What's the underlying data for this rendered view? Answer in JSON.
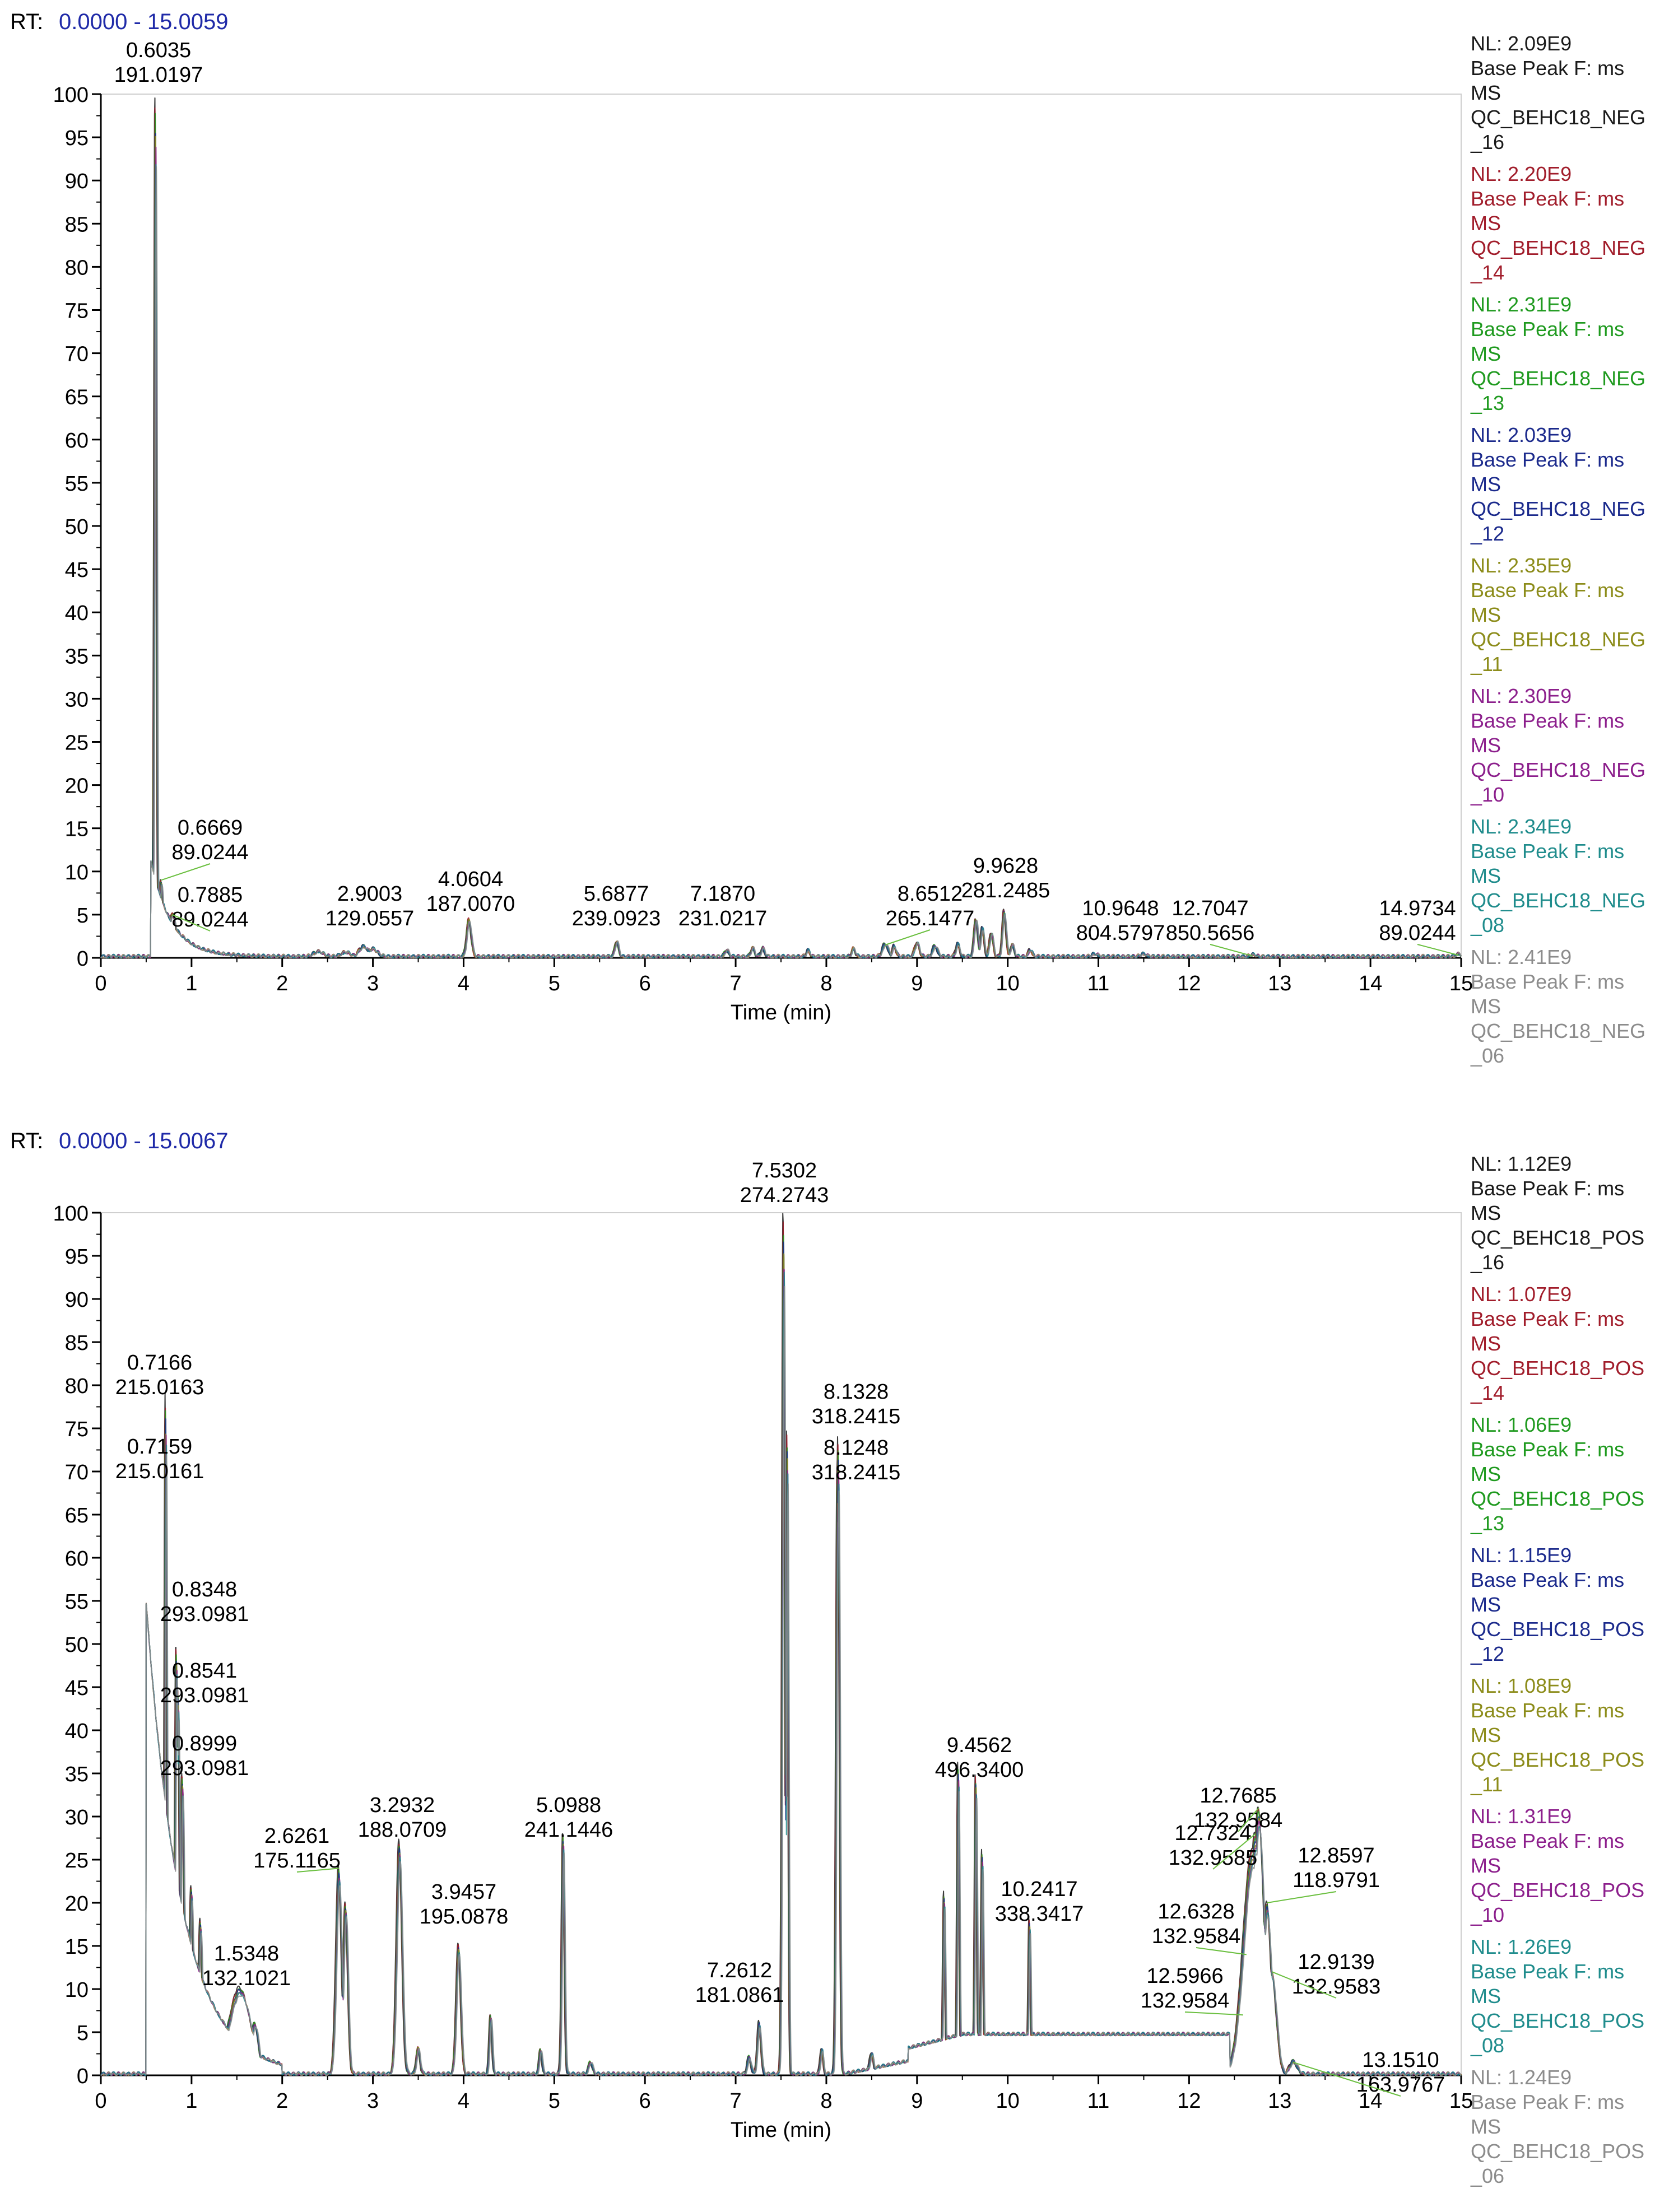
{
  "chart_data": [
    {
      "type": "line",
      "id": "neg",
      "rt_label": "RT:",
      "rt_range": "0.0000 - 15.0059",
      "xlabel": "Time (min)",
      "ylabel": "",
      "xlim": [
        0,
        15
      ],
      "ylim": [
        0,
        100
      ],
      "x_ticks": [
        "0",
        "1",
        "2",
        "3",
        "4",
        "5",
        "6",
        "7",
        "8",
        "9",
        "10",
        "11",
        "12",
        "13",
        "14",
        "15"
      ],
      "y_ticks": [
        "0",
        "5",
        "10",
        "15",
        "20",
        "25",
        "30",
        "35",
        "40",
        "45",
        "50",
        "55",
        "60",
        "65",
        "70",
        "75",
        "80",
        "85",
        "90",
        "95",
        "100"
      ],
      "legend": [
        {
          "nl": "NL: 2.09E9",
          "l2": "Base Peak F: ms",
          "l3": "MS",
          "l4": "QC_BEHC18_NEG",
          "l5": "_16",
          "color": "#1a1a1a"
        },
        {
          "nl": "NL: 2.20E9",
          "l2": "Base Peak F: ms",
          "l3": "MS",
          "l4": "QC_BEHC18_NEG",
          "l5": "_14",
          "color": "#a11d2b"
        },
        {
          "nl": "NL: 2.31E9",
          "l2": "Base Peak F: ms",
          "l3": "MS",
          "l4": "QC_BEHC18_NEG",
          "l5": "_13",
          "color": "#1f9a1f"
        },
        {
          "nl": "NL: 2.03E9",
          "l2": "Base Peak F: ms",
          "l3": "MS",
          "l4": "QC_BEHC18_NEG",
          "l5": "_12",
          "color": "#1b2a8c"
        },
        {
          "nl": "NL: 2.35E9",
          "l2": "Base Peak F: ms",
          "l3": "MS",
          "l4": "QC_BEHC18_NEG",
          "l5": "_11",
          "color": "#8c8c1a"
        },
        {
          "nl": "NL: 2.30E9",
          "l2": "Base Peak F: ms",
          "l3": "MS",
          "l4": "QC_BEHC18_NEG",
          "l5": "_10",
          "color": "#8c1f8c"
        },
        {
          "nl": "NL: 2.34E9",
          "l2": "Base Peak F: ms",
          "l3": "MS",
          "l4": "QC_BEHC18_NEG",
          "l5": "_08",
          "color": "#1f8c8c"
        },
        {
          "nl": "NL: 2.41E9",
          "l2": "Base Peak F: ms",
          "l3": "MS",
          "l4": "QC_BEHC18_NEG",
          "l5": "_06",
          "color": "#8c8c8c"
        }
      ],
      "peaks": [
        {
          "x": 0.6035,
          "y": 100,
          "l1": "0.6035",
          "l2": "191.0197",
          "w": 0.012
        },
        {
          "x": 0.6669,
          "y": 9,
          "l1": "0.6669",
          "l2": "89.0244",
          "w": 0.02
        },
        {
          "x": 0.7885,
          "y": 5,
          "l1": "0.7885",
          "l2": "89.0244",
          "w": 0.05
        },
        {
          "x": 2.9003,
          "y": 1.2,
          "l1": "2.9003",
          "l2": "129.0557",
          "w": 0.05
        },
        {
          "x": 4.0604,
          "y": 4.3,
          "l1": "4.0604",
          "l2": "187.0070",
          "w": 0.025
        },
        {
          "x": 5.6877,
          "y": 1.8,
          "l1": "5.6877",
          "l2": "239.0923",
          "w": 0.02
        },
        {
          "x": 7.187,
          "y": 1.0,
          "l1": "7.1870",
          "l2": "231.0217",
          "w": 0.02
        },
        {
          "x": 8.6512,
          "y": 1.5,
          "l1": "8.6512",
          "l2": "265.1477",
          "w": 0.03
        },
        {
          "x": 9.9628,
          "y": 5.3,
          "l1": "9.9628",
          "l2": "281.2485",
          "w": 0.02
        },
        {
          "x": 10.9648,
          "y": 0.3,
          "l1": "10.9648",
          "l2": "804.5797",
          "w": 0.03
        },
        {
          "x": 12.7047,
          "y": 0.2,
          "l1": "12.7047",
          "l2": "850.5656",
          "w": 0.03
        },
        {
          "x": 14.9734,
          "y": 0.3,
          "l1": "14.9734",
          "l2": "89.0244",
          "w": 0.03
        }
      ],
      "minor_peaks": [
        {
          "x": 2.4,
          "y": 0.6,
          "w": 0.05
        },
        {
          "x": 2.7,
          "y": 0.5,
          "w": 0.05
        },
        {
          "x": 3.0,
          "y": 0.9,
          "w": 0.05
        },
        {
          "x": 6.9,
          "y": 0.8,
          "w": 0.02
        },
        {
          "x": 7.3,
          "y": 1.0,
          "w": 0.02
        },
        {
          "x": 7.8,
          "y": 0.7,
          "w": 0.02
        },
        {
          "x": 8.3,
          "y": 0.9,
          "w": 0.02
        },
        {
          "x": 8.75,
          "y": 1.2,
          "w": 0.02
        },
        {
          "x": 9.0,
          "y": 1.6,
          "w": 0.025
        },
        {
          "x": 9.2,
          "y": 1.3,
          "w": 0.025
        },
        {
          "x": 9.45,
          "y": 1.5,
          "w": 0.02
        },
        {
          "x": 9.65,
          "y": 4.5,
          "w": 0.02
        },
        {
          "x": 9.72,
          "y": 3.4,
          "w": 0.02
        },
        {
          "x": 9.82,
          "y": 2.8,
          "w": 0.02
        },
        {
          "x": 10.05,
          "y": 1.4,
          "w": 0.02
        },
        {
          "x": 10.25,
          "y": 0.8,
          "w": 0.02
        },
        {
          "x": 11.5,
          "y": 0.3,
          "w": 0.03
        }
      ]
    },
    {
      "type": "line",
      "id": "pos",
      "rt_label": "RT:",
      "rt_range": "0.0000 - 15.0067",
      "xlabel": "Time (min)",
      "ylabel": "",
      "xlim": [
        0,
        15
      ],
      "ylim": [
        0,
        100
      ],
      "x_ticks": [
        "0",
        "1",
        "2",
        "3",
        "4",
        "5",
        "6",
        "7",
        "8",
        "9",
        "10",
        "11",
        "12",
        "13",
        "14",
        "15"
      ],
      "y_ticks": [
        "0",
        "5",
        "10",
        "15",
        "20",
        "25",
        "30",
        "35",
        "40",
        "45",
        "50",
        "55",
        "60",
        "65",
        "70",
        "75",
        "80",
        "85",
        "90",
        "95",
        "100"
      ],
      "legend": [
        {
          "nl": "NL: 1.12E9",
          "l2": "Base Peak F: ms",
          "l3": "MS",
          "l4": "QC_BEHC18_POS",
          "l5": "_16",
          "color": "#1a1a1a"
        },
        {
          "nl": "NL: 1.07E9",
          "l2": "Base Peak F: ms",
          "l3": "MS",
          "l4": "QC_BEHC18_POS",
          "l5": "_14",
          "color": "#a11d2b"
        },
        {
          "nl": "NL: 1.06E9",
          "l2": "Base Peak F: ms",
          "l3": "MS",
          "l4": "QC_BEHC18_POS",
          "l5": "_13",
          "color": "#1f9a1f"
        },
        {
          "nl": "NL: 1.15E9",
          "l2": "Base Peak F: ms",
          "l3": "MS",
          "l4": "QC_BEHC18_POS",
          "l5": "_12",
          "color": "#1b2a8c"
        },
        {
          "nl": "NL: 1.08E9",
          "l2": "Base Peak F: ms",
          "l3": "MS",
          "l4": "QC_BEHC18_POS",
          "l5": "_11",
          "color": "#8c8c1a"
        },
        {
          "nl": "NL: 1.31E9",
          "l2": "Base Peak F: ms",
          "l3": "MS",
          "l4": "QC_BEHC18_POS",
          "l5": "_10",
          "color": "#8c1f8c"
        },
        {
          "nl": "NL: 1.26E9",
          "l2": "Base Peak F: ms",
          "l3": "MS",
          "l4": "QC_BEHC18_POS",
          "l5": "_08",
          "color": "#1f8c8c"
        },
        {
          "nl": "NL: 1.24E9",
          "l2": "Base Peak F: ms",
          "l3": "MS",
          "l4": "QC_BEHC18_POS",
          "l5": "_06",
          "color": "#8c8c8c"
        }
      ],
      "peaks": [
        {
          "x": 0.7166,
          "y": 79,
          "l1": "0.7166",
          "l2": "215.0163",
          "w": 0.012
        },
        {
          "x": 0.7159,
          "y": 68,
          "l1": "0.7159",
          "l2": "215.0161",
          "w": 0.012
        },
        {
          "x": 0.8348,
          "y": 50,
          "l1": "0.8348",
          "l2": "293.0981",
          "w": 0.015
        },
        {
          "x": 0.8541,
          "y": 45,
          "l1": "0.8541",
          "l2": "293.0981",
          "w": 0.015
        },
        {
          "x": 0.8999,
          "y": 35,
          "l1": "0.8999",
          "l2": "293.0981",
          "w": 0.02
        },
        {
          "x": 1.5348,
          "y": 10,
          "l1": "1.5348",
          "l2": "132.1021",
          "w": 0.12
        },
        {
          "x": 2.6261,
          "y": 24,
          "l1": "2.6261",
          "l2": "175.1165",
          "w": 0.03
        },
        {
          "x": 3.2932,
          "y": 27,
          "l1": "3.2932",
          "l2": "188.0709",
          "w": 0.03
        },
        {
          "x": 3.9457,
          "y": 15,
          "l1": "3.9457",
          "l2": "195.0878",
          "w": 0.025
        },
        {
          "x": 5.0988,
          "y": 28,
          "l1": "5.0988",
          "l2": "241.1446",
          "w": 0.015
        },
        {
          "x": 7.2612,
          "y": 6,
          "l1": "7.2612",
          "l2": "181.0861",
          "w": 0.02
        },
        {
          "x": 7.5302,
          "y": 100,
          "l1": "7.5302",
          "l2": "274.2743",
          "w": 0.015
        },
        {
          "x": 8.1328,
          "y": 74,
          "l1": "8.1328",
          "l2": "318.2415",
          "w": 0.015
        },
        {
          "x": 8.1248,
          "y": 70,
          "l1": "8.1248",
          "l2": "318.2415",
          "w": 0.015
        },
        {
          "x": 9.4562,
          "y": 36,
          "l1": "9.4562",
          "l2": "496.3400",
          "w": 0.012
        },
        {
          "x": 10.2417,
          "y": 18,
          "l1": "10.2417",
          "l2": "338.3417",
          "w": 0.012
        },
        {
          "x": 12.7685,
          "y": 31,
          "l1": "12.7685",
          "l2": "132.9584",
          "w": 0.06
        },
        {
          "x": 12.7324,
          "y": 28,
          "l1": "12.7324",
          "l2": "132.9585",
          "w": 0.06
        },
        {
          "x": 12.8597,
          "y": 20,
          "l1": "12.8597",
          "l2": "118.9791",
          "w": 0.05
        },
        {
          "x": 12.6328,
          "y": 14,
          "l1": "12.6328",
          "l2": "132.9584",
          "w": 0.05
        },
        {
          "x": 12.9139,
          "y": 12,
          "l1": "12.9139",
          "l2": "132.9583",
          "w": 0.05
        },
        {
          "x": 12.5966,
          "y": 7,
          "l1": "12.5966",
          "l2": "132.9584",
          "w": 0.05
        },
        {
          "x": 13.151,
          "y": 1.5,
          "l1": "13.1510",
          "l2": "163.9767",
          "w": 0.04
        }
      ],
      "minor_peaks": [
        {
          "x": 0.55,
          "y": 30,
          "w": 0.012
        },
        {
          "x": 0.64,
          "y": 20,
          "w": 0.012
        },
        {
          "x": 1.0,
          "y": 22,
          "w": 0.02
        },
        {
          "x": 1.1,
          "y": 18,
          "w": 0.02
        },
        {
          "x": 1.7,
          "y": 6,
          "w": 0.04
        },
        {
          "x": 2.7,
          "y": 20,
          "w": 0.025
        },
        {
          "x": 3.5,
          "y": 3,
          "w": 0.02
        },
        {
          "x": 4.3,
          "y": 7,
          "w": 0.015
        },
        {
          "x": 4.85,
          "y": 3,
          "w": 0.015
        },
        {
          "x": 5.4,
          "y": 1.5,
          "w": 0.02
        },
        {
          "x": 7.15,
          "y": 2,
          "w": 0.02
        },
        {
          "x": 7.57,
          "y": 75,
          "w": 0.012
        },
        {
          "x": 7.95,
          "y": 3,
          "w": 0.015
        },
        {
          "x": 8.5,
          "y": 2.5,
          "w": 0.02
        },
        {
          "x": 9.3,
          "y": 21,
          "w": 0.012
        },
        {
          "x": 9.65,
          "y": 35,
          "w": 0.012
        },
        {
          "x": 9.72,
          "y": 26,
          "w": 0.012
        },
        {
          "x": 12.7,
          "y": 26,
          "w": 0.1
        }
      ]
    }
  ]
}
